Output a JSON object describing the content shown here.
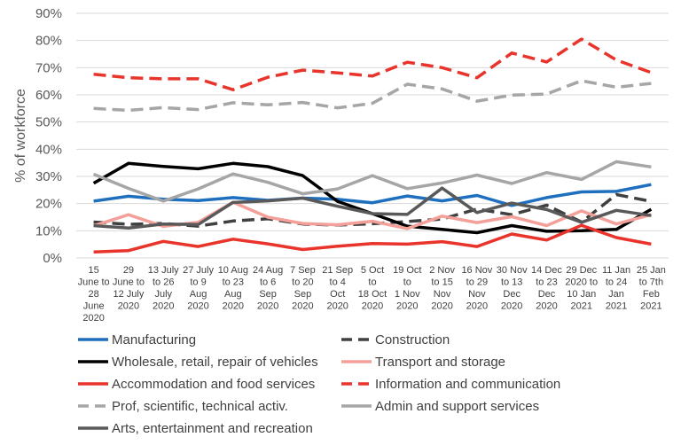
{
  "chart_data": {
    "type": "line",
    "title": "",
    "ylabel": "% of workforce",
    "xlabel": "",
    "ylim": [
      0,
      90
    ],
    "y_ticks": [
      "0%",
      "10%",
      "20%",
      "30%",
      "40%",
      "50%",
      "60%",
      "70%",
      "80%",
      "90%"
    ],
    "grid": "horizontal",
    "legend_position": "bottom",
    "categories": [
      [
        "15",
        "June to",
        "28",
        "June",
        "2020"
      ],
      [
        "29",
        "June to",
        "12 July",
        "2020"
      ],
      [
        "13 July",
        "to 26",
        "July",
        "2020"
      ],
      [
        "27 July",
        "to 9",
        "Aug",
        "2020"
      ],
      [
        "10 Aug",
        "to 23",
        "Aug",
        "2020"
      ],
      [
        "24 Aug",
        "to 6",
        "Sep",
        "2020"
      ],
      [
        "7 Sep",
        "to 20",
        "Sep",
        "2020"
      ],
      [
        "21 Sep",
        "to 4",
        "Oct",
        "2020"
      ],
      [
        "5 Oct",
        "to",
        "18 Oct",
        "2020"
      ],
      [
        "19 Oct",
        "to",
        "1 Nov",
        "2020"
      ],
      [
        "2 Nov",
        "to 15",
        "Nov",
        "2020"
      ],
      [
        "16 Nov",
        "to 29",
        "Nov",
        "2020"
      ],
      [
        "30 Nov",
        "to 13",
        "Dec",
        "2020"
      ],
      [
        "14 Dec",
        "to 23",
        "Dec",
        "2020"
      ],
      [
        "29 Dec",
        "2020 to",
        "10 Jan",
        "2021"
      ],
      [
        "11 Jan",
        "to 24",
        "Jan",
        "2021"
      ],
      [
        "25 Jan",
        "to 7th",
        "Feb",
        "2021"
      ]
    ],
    "series": [
      {
        "name": "Manufacturing",
        "color": "#1f6fbf",
        "dash": "solid",
        "values": [
          20.9,
          22.7,
          21.6,
          21.1,
          22.2,
          21.2,
          22.0,
          21.6,
          20.3,
          22.8,
          21.0,
          23.0,
          19.3,
          22.2,
          24.3,
          24.5,
          27.0
        ]
      },
      {
        "name": "Construction",
        "color": "#404040",
        "dash": "dashed",
        "values": [
          13.2,
          12.4,
          12.7,
          11.7,
          13.6,
          14.4,
          12.5,
          12.1,
          12.6,
          13.4,
          14.3,
          18.0,
          15.9,
          19.4,
          13.2,
          23.3,
          20.8
        ]
      },
      {
        "name": "Wholesale, retail, repair of vehicles",
        "color": "#000000",
        "dash": "solid",
        "values": [
          27.5,
          34.8,
          33.7,
          32.8,
          34.8,
          33.6,
          30.3,
          20.8,
          16.3,
          11.7,
          10.5,
          9.3,
          11.9,
          9.8,
          10.0,
          10.5,
          17.9
        ]
      },
      {
        "name": "Transport and storage",
        "color": "#f4a09a",
        "dash": "solid",
        "values": [
          11.8,
          15.9,
          11.6,
          13.1,
          20.5,
          15.0,
          12.7,
          12.2,
          13.5,
          10.8,
          15.4,
          13.0,
          15.2,
          11.9,
          17.3,
          12.5,
          15.9
        ]
      },
      {
        "name": "Accommodation and food services",
        "color": "#e8342a",
        "dash": "solid",
        "values": [
          2.2,
          2.7,
          6.1,
          4.2,
          6.9,
          5.2,
          3.1,
          4.3,
          5.3,
          5.1,
          6.0,
          4.2,
          8.8,
          6.6,
          12.0,
          7.5,
          5.1
        ]
      },
      {
        "name": "Information and communication",
        "color": "#e8342a",
        "dash": "dashed",
        "values": [
          67.6,
          66.3,
          65.9,
          65.9,
          61.9,
          66.5,
          69.1,
          68.1,
          66.9,
          72.0,
          70.0,
          66.3,
          75.4,
          72.1,
          80.5,
          72.8,
          68.2
        ]
      },
      {
        "name": "Prof, scientific, technical activ.",
        "color": "#a6a6a6",
        "dash": "dashed",
        "values": [
          55.0,
          54.3,
          55.3,
          54.6,
          57.1,
          56.3,
          57.2,
          55.2,
          56.9,
          63.9,
          62.2,
          57.7,
          59.9,
          60.3,
          65.2,
          62.8,
          64.2
        ]
      },
      {
        "name": "Admin and support services",
        "color": "#a6a6a6",
        "dash": "solid",
        "values": [
          30.8,
          25.6,
          20.9,
          25.4,
          30.9,
          27.8,
          23.6,
          25.4,
          30.3,
          25.5,
          27.6,
          30.5,
          27.4,
          31.4,
          28.9,
          35.4,
          33.5
        ]
      },
      {
        "name": "Arts, entertainment and recreation",
        "color": "#595959",
        "dash": "solid",
        "values": [
          11.9,
          11.0,
          12.5,
          12.3,
          20.4,
          21.0,
          22.0,
          19.0,
          16.3,
          16.0,
          25.7,
          16.7,
          20.2,
          17.8,
          13.1,
          17.5,
          15.6
        ]
      }
    ]
  }
}
